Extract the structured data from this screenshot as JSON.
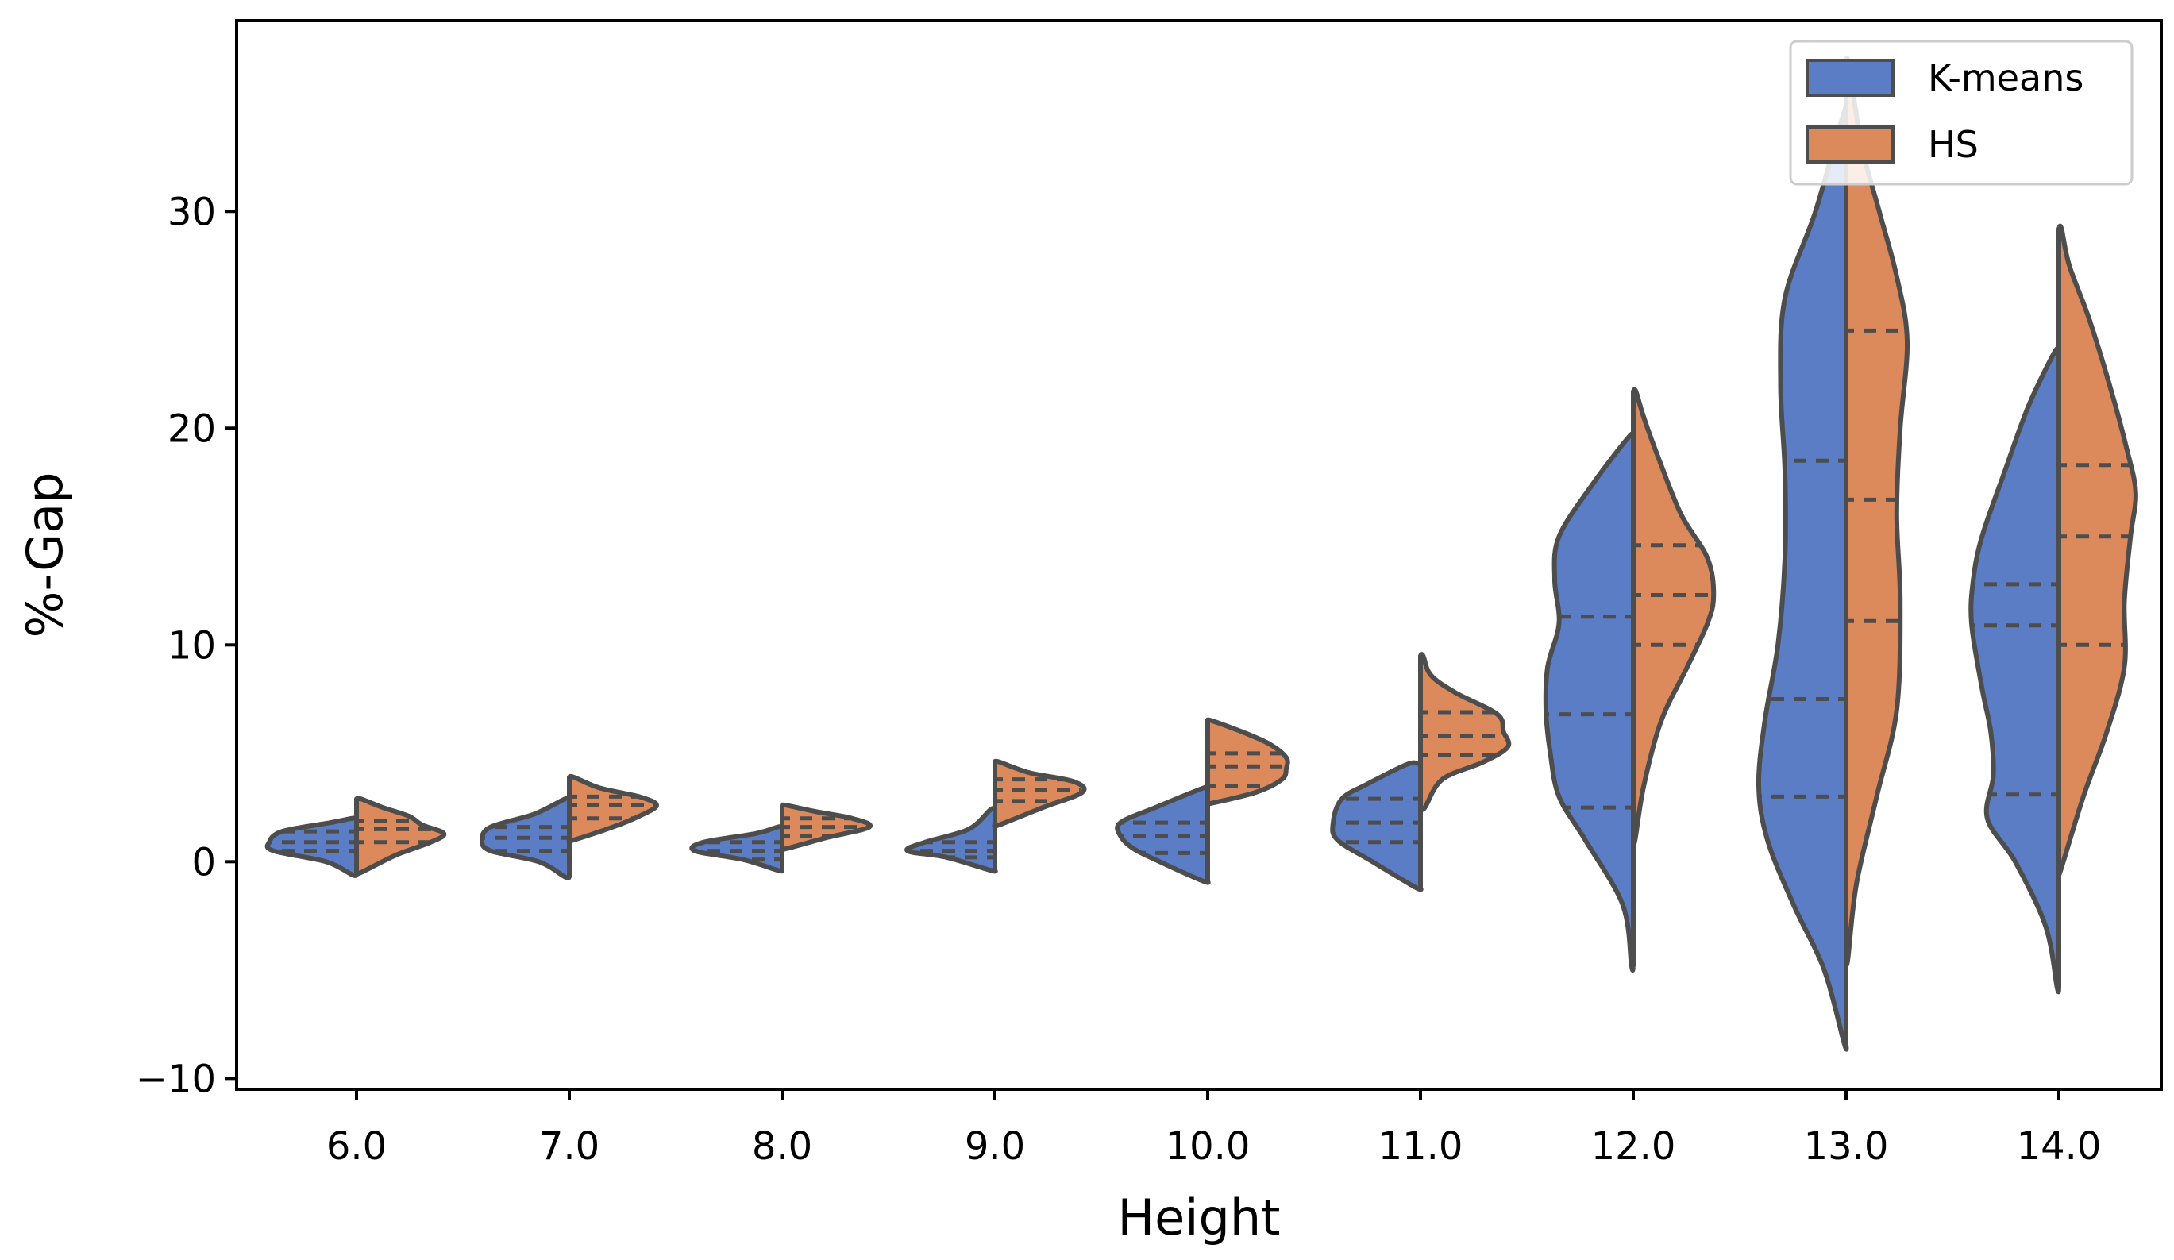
{
  "chart_data": {
    "type": "violin",
    "title": "",
    "xlabel": "Height",
    "ylabel": "%-Gap",
    "categories": [
      "6.0",
      "7.0",
      "8.0",
      "9.0",
      "10.0",
      "11.0",
      "12.0",
      "13.0",
      "14.0"
    ],
    "y_ticks": [
      "−10",
      "0",
      "10",
      "20",
      "30"
    ],
    "y_tick_values": [
      -10,
      0,
      10,
      20,
      30
    ],
    "ylim": [
      -10.5,
      38.8
    ],
    "legend_position": "top-right",
    "colors": {
      "K-means": "#5a7dc6",
      "HS": "#dc8a5b",
      "outline": "#4d4d4d"
    },
    "series": [
      {
        "name": "K-means",
        "side": "left",
        "violins": [
          {
            "min": -0.6,
            "max": 2.0,
            "quartiles": [
              0.5,
              0.9,
              1.4
            ],
            "profile": [
              [
                -0.6,
                0.05
              ],
              [
                0.0,
                0.35
              ],
              [
                0.5,
                0.95
              ],
              [
                0.9,
                1.0
              ],
              [
                1.4,
                0.85
              ],
              [
                1.8,
                0.3
              ],
              [
                2.0,
                0.05
              ]
            ]
          },
          {
            "min": -0.7,
            "max": 2.9,
            "quartiles": [
              0.5,
              1.1,
              1.6
            ],
            "profile": [
              [
                -0.7,
                0.05
              ],
              [
                0.0,
                0.35
              ],
              [
                0.5,
                0.9
              ],
              [
                1.0,
                1.0
              ],
              [
                1.6,
                0.9
              ],
              [
                2.2,
                0.4
              ],
              [
                2.9,
                0.05
              ]
            ]
          },
          {
            "min": -0.4,
            "max": 1.6,
            "quartiles": [
              0.1,
              0.5,
              0.9
            ],
            "profile": [
              [
                -0.4,
                0.05
              ],
              [
                0.1,
                0.45
              ],
              [
                0.5,
                1.0
              ],
              [
                0.9,
                0.9
              ],
              [
                1.3,
                0.3
              ],
              [
                1.6,
                0.05
              ]
            ]
          },
          {
            "min": -0.4,
            "max": 2.4,
            "quartiles": [
              0.2,
              0.5,
              0.9
            ],
            "profile": [
              [
                -0.4,
                0.05
              ],
              [
                0.2,
                0.55
              ],
              [
                0.5,
                1.0
              ],
              [
                0.9,
                0.8
              ],
              [
                1.5,
                0.3
              ],
              [
                2.4,
                0.05
              ]
            ]
          },
          {
            "min": -0.9,
            "max": 3.4,
            "quartiles": [
              0.4,
              1.2,
              1.8
            ],
            "profile": [
              [
                -0.9,
                0.05
              ],
              [
                0.0,
                0.55
              ],
              [
                0.6,
                0.85
              ],
              [
                1.2,
                1.0
              ],
              [
                1.8,
                1.0
              ],
              [
                2.5,
                0.6
              ],
              [
                3.4,
                0.05
              ]
            ]
          },
          {
            "min": -1.2,
            "max": 4.5,
            "quartiles": [
              0.9,
              1.8,
              2.9
            ],
            "profile": [
              [
                -1.2,
                0.05
              ],
              [
                0.0,
                0.55
              ],
              [
                1.0,
                0.95
              ],
              [
                1.8,
                1.0
              ],
              [
                2.9,
                0.9
              ],
              [
                3.6,
                0.6
              ],
              [
                4.5,
                0.15
              ]
            ]
          },
          {
            "min": -4.8,
            "max": 19.6,
            "quartiles": [
              2.5,
              6.8,
              11.3
            ],
            "profile": [
              [
                -4.8,
                0.02
              ],
              [
                -2.0,
                0.12
              ],
              [
                1.0,
                0.55
              ],
              [
                3.0,
                0.85
              ],
              [
                5.0,
                0.95
              ],
              [
                7.0,
                1.0
              ],
              [
                9.0,
                0.98
              ],
              [
                11.0,
                0.85
              ],
              [
                13.0,
                0.9
              ],
              [
                15.0,
                0.85
              ],
              [
                17.5,
                0.45
              ],
              [
                19.6,
                0.05
              ]
            ]
          },
          {
            "min": -8.4,
            "max": 34.5,
            "quartiles": [
              3.0,
              7.5,
              18.5
            ],
            "profile": [
              [
                -8.4,
                0.02
              ],
              [
                -5.0,
                0.25
              ],
              [
                -2.0,
                0.6
              ],
              [
                1.0,
                0.9
              ],
              [
                3.5,
                1.0
              ],
              [
                6.5,
                0.93
              ],
              [
                10.0,
                0.78
              ],
              [
                14.0,
                0.7
              ],
              [
                18.0,
                0.7
              ],
              [
                22.0,
                0.75
              ],
              [
                26.0,
                0.7
              ],
              [
                30.0,
                0.35
              ],
              [
                34.5,
                0.03
              ]
            ]
          },
          {
            "min": -5.8,
            "max": 23.5,
            "quartiles": [
              3.1,
              10.9,
              12.8
            ],
            "profile": [
              [
                -5.8,
                0.02
              ],
              [
                -3.0,
                0.15
              ],
              [
                0.0,
                0.5
              ],
              [
                2.0,
                0.82
              ],
              [
                4.0,
                0.75
              ],
              [
                6.0,
                0.78
              ],
              [
                8.0,
                0.88
              ],
              [
                11.0,
                1.0
              ],
              [
                13.0,
                0.98
              ],
              [
                15.0,
                0.88
              ],
              [
                18.0,
                0.62
              ],
              [
                21.0,
                0.35
              ],
              [
                23.5,
                0.05
              ]
            ]
          }
        ]
      },
      {
        "name": "HS",
        "side": "right",
        "violins": [
          {
            "min": -0.5,
            "max": 2.9,
            "quartiles": [
              0.9,
              1.5,
              1.9
            ],
            "profile": [
              [
                -0.5,
                0.05
              ],
              [
                0.3,
                0.45
              ],
              [
                0.9,
                0.85
              ],
              [
                1.3,
                1.0
              ],
              [
                1.7,
                0.75
              ],
              [
                2.1,
                0.6
              ],
              [
                2.5,
                0.3
              ],
              [
                2.9,
                0.05
              ]
            ]
          },
          {
            "min": 1.0,
            "max": 3.9,
            "quartiles": [
              2.0,
              2.6,
              3.0
            ],
            "profile": [
              [
                1.0,
                0.05
              ],
              [
                1.6,
                0.5
              ],
              [
                2.1,
                0.8
              ],
              [
                2.6,
                1.0
              ],
              [
                3.0,
                0.8
              ],
              [
                3.4,
                0.35
              ],
              [
                3.9,
                0.05
              ]
            ]
          },
          {
            "min": 0.6,
            "max": 2.6,
            "quartiles": [
              1.2,
              1.6,
              2.0
            ],
            "profile": [
              [
                0.6,
                0.05
              ],
              [
                1.1,
                0.5
              ],
              [
                1.6,
                1.0
              ],
              [
                2.0,
                0.8
              ],
              [
                2.3,
                0.4
              ],
              [
                2.6,
                0.05
              ]
            ]
          },
          {
            "min": 1.7,
            "max": 4.6,
            "quartiles": [
              2.8,
              3.3,
              3.8
            ],
            "profile": [
              [
                1.7,
                0.05
              ],
              [
                2.5,
                0.55
              ],
              [
                3.2,
                1.0
              ],
              [
                3.7,
                0.9
              ],
              [
                4.1,
                0.4
              ],
              [
                4.6,
                0.05
              ]
            ]
          },
          {
            "min": 2.7,
            "max": 6.5,
            "quartiles": [
              3.5,
              4.4,
              5.0
            ],
            "profile": [
              [
                2.7,
                0.05
              ],
              [
                3.2,
                0.55
              ],
              [
                3.8,
                0.85
              ],
              [
                4.3,
                0.9
              ],
              [
                4.8,
                0.9
              ],
              [
                5.4,
                0.72
              ],
              [
                5.9,
                0.45
              ],
              [
                6.5,
                0.05
              ]
            ]
          },
          {
            "min": 2.5,
            "max": 9.5,
            "quartiles": [
              4.9,
              5.8,
              6.9
            ],
            "profile": [
              [
                2.5,
                0.05
              ],
              [
                3.8,
                0.25
              ],
              [
                4.6,
                0.72
              ],
              [
                5.3,
                1.0
              ],
              [
                6.0,
                0.95
              ],
              [
                6.8,
                0.88
              ],
              [
                7.8,
                0.4
              ],
              [
                8.6,
                0.12
              ],
              [
                9.5,
                0.03
              ]
            ]
          },
          {
            "min": 1.0,
            "max": 21.7,
            "quartiles": [
              10.0,
              12.3,
              14.6
            ],
            "profile": [
              [
                1.0,
                0.02
              ],
              [
                3.5,
                0.12
              ],
              [
                6.5,
                0.32
              ],
              [
                9.0,
                0.62
              ],
              [
                11.0,
                0.85
              ],
              [
                12.3,
                0.92
              ],
              [
                14.0,
                0.85
              ],
              [
                16.0,
                0.55
              ],
              [
                18.5,
                0.3
              ],
              [
                20.5,
                0.12
              ],
              [
                21.7,
                0.03
              ]
            ]
          },
          {
            "min": -4.5,
            "max": 36.8,
            "quartiles": [
              11.1,
              16.7,
              24.5
            ],
            "profile": [
              [
                -4.5,
                0.02
              ],
              [
                -1.0,
                0.12
              ],
              [
                3.0,
                0.35
              ],
              [
                7.0,
                0.58
              ],
              [
                12.0,
                0.62
              ],
              [
                16.0,
                0.58
              ],
              [
                20.0,
                0.62
              ],
              [
                24.0,
                0.7
              ],
              [
                27.0,
                0.58
              ],
              [
                30.0,
                0.38
              ],
              [
                33.0,
                0.18
              ],
              [
                36.8,
                0.03
              ]
            ]
          },
          {
            "min": -0.4,
            "max": 29.2,
            "quartiles": [
              10.0,
              15.0,
              18.3
            ],
            "profile": [
              [
                -0.4,
                0.02
              ],
              [
                3.0,
                0.28
              ],
              [
                6.0,
                0.55
              ],
              [
                9.0,
                0.75
              ],
              [
                12.0,
                0.75
              ],
              [
                15.0,
                0.82
              ],
              [
                17.0,
                0.88
              ],
              [
                19.0,
                0.78
              ],
              [
                22.0,
                0.58
              ],
              [
                25.0,
                0.35
              ],
              [
                27.5,
                0.12
              ],
              [
                29.2,
                0.03
              ]
            ]
          }
        ]
      }
    ]
  }
}
